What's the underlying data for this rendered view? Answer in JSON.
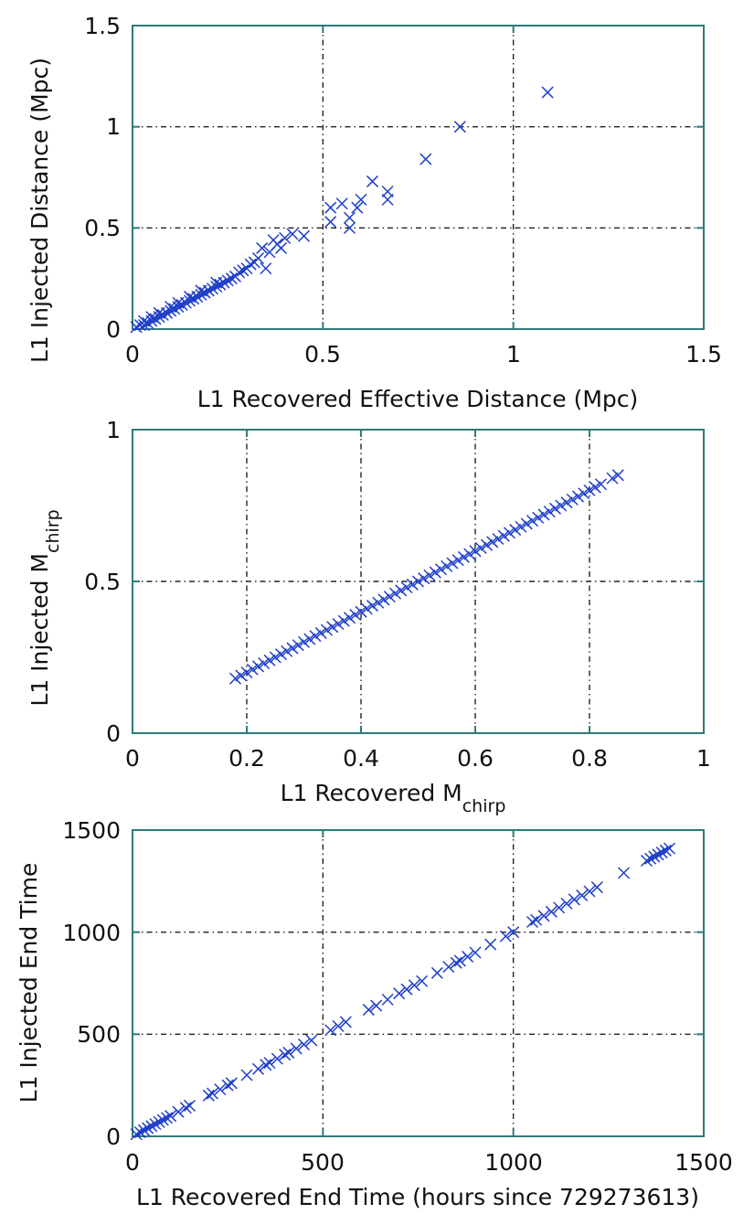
{
  "chart_data": [
    {
      "type": "scatter",
      "xlabel": "L1 Recovered Effective Distance (Mpc)",
      "ylabel": "L1 Injected Distance (Mpc)",
      "xlim": [
        0,
        1.5
      ],
      "ylim": [
        0,
        1.5
      ],
      "xticks": [
        "0",
        "0.5",
        "1",
        "1.5"
      ],
      "yticks": [
        "0",
        "0.5",
        "1",
        "1.5"
      ],
      "grid": true,
      "marker": "x",
      "color": "#1f3fc8",
      "points": [
        [
          0.01,
          0.01
        ],
        [
          0.02,
          0.02
        ],
        [
          0.03,
          0.02
        ],
        [
          0.03,
          0.04
        ],
        [
          0.04,
          0.03
        ],
        [
          0.05,
          0.04
        ],
        [
          0.05,
          0.06
        ],
        [
          0.06,
          0.05
        ],
        [
          0.07,
          0.06
        ],
        [
          0.07,
          0.08
        ],
        [
          0.08,
          0.07
        ],
        [
          0.09,
          0.08
        ],
        [
          0.1,
          0.09
        ],
        [
          0.1,
          0.11
        ],
        [
          0.11,
          0.1
        ],
        [
          0.12,
          0.11
        ],
        [
          0.12,
          0.13
        ],
        [
          0.13,
          0.12
        ],
        [
          0.14,
          0.13
        ],
        [
          0.15,
          0.14
        ],
        [
          0.15,
          0.16
        ],
        [
          0.16,
          0.15
        ],
        [
          0.17,
          0.16
        ],
        [
          0.18,
          0.17
        ],
        [
          0.18,
          0.19
        ],
        [
          0.19,
          0.18
        ],
        [
          0.2,
          0.19
        ],
        [
          0.21,
          0.2
        ],
        [
          0.22,
          0.21
        ],
        [
          0.22,
          0.23
        ],
        [
          0.23,
          0.22
        ],
        [
          0.24,
          0.23
        ],
        [
          0.25,
          0.24
        ],
        [
          0.26,
          0.25
        ],
        [
          0.27,
          0.26
        ],
        [
          0.28,
          0.28
        ],
        [
          0.29,
          0.29
        ],
        [
          0.3,
          0.3
        ],
        [
          0.31,
          0.32
        ],
        [
          0.32,
          0.33
        ],
        [
          0.33,
          0.35
        ],
        [
          0.34,
          0.4
        ],
        [
          0.35,
          0.3
        ],
        [
          0.36,
          0.38
        ],
        [
          0.37,
          0.44
        ],
        [
          0.38,
          0.42
        ],
        [
          0.39,
          0.4
        ],
        [
          0.4,
          0.45
        ],
        [
          0.42,
          0.47
        ],
        [
          0.45,
          0.46
        ],
        [
          0.52,
          0.53
        ],
        [
          0.52,
          0.6
        ],
        [
          0.55,
          0.62
        ],
        [
          0.57,
          0.5
        ],
        [
          0.57,
          0.55
        ],
        [
          0.59,
          0.6
        ],
        [
          0.6,
          0.64
        ],
        [
          0.63,
          0.73
        ],
        [
          0.67,
          0.64
        ],
        [
          0.67,
          0.68
        ],
        [
          0.77,
          0.84
        ],
        [
          0.86,
          1.0
        ],
        [
          1.09,
          1.17
        ]
      ]
    },
    {
      "type": "scatter",
      "xlabel_main": "L1 Recovered M",
      "xlabel_sub": "chirp",
      "ylabel_main": "L1 Injected M",
      "ylabel_sub": "chirp",
      "xlim": [
        0,
        1
      ],
      "ylim": [
        0,
        1
      ],
      "xticks": [
        "0",
        "0.2",
        "0.4",
        "0.6",
        "0.8",
        "1"
      ],
      "yticks": [
        "0",
        "0.5",
        "1"
      ],
      "grid": true,
      "marker": "x",
      "color": "#1f3fc8",
      "points": [
        [
          0.18,
          0.18
        ],
        [
          0.19,
          0.19
        ],
        [
          0.2,
          0.2
        ],
        [
          0.21,
          0.21
        ],
        [
          0.22,
          0.22
        ],
        [
          0.23,
          0.23
        ],
        [
          0.24,
          0.24
        ],
        [
          0.25,
          0.25
        ],
        [
          0.26,
          0.26
        ],
        [
          0.27,
          0.27
        ],
        [
          0.28,
          0.28
        ],
        [
          0.29,
          0.29
        ],
        [
          0.3,
          0.3
        ],
        [
          0.31,
          0.31
        ],
        [
          0.32,
          0.32
        ],
        [
          0.33,
          0.33
        ],
        [
          0.34,
          0.34
        ],
        [
          0.35,
          0.35
        ],
        [
          0.36,
          0.36
        ],
        [
          0.37,
          0.37
        ],
        [
          0.38,
          0.38
        ],
        [
          0.39,
          0.39
        ],
        [
          0.4,
          0.4
        ],
        [
          0.41,
          0.41
        ],
        [
          0.42,
          0.42
        ],
        [
          0.43,
          0.43
        ],
        [
          0.44,
          0.44
        ],
        [
          0.45,
          0.45
        ],
        [
          0.46,
          0.46
        ],
        [
          0.47,
          0.47
        ],
        [
          0.48,
          0.48
        ],
        [
          0.49,
          0.49
        ],
        [
          0.5,
          0.5
        ],
        [
          0.51,
          0.51
        ],
        [
          0.52,
          0.52
        ],
        [
          0.53,
          0.53
        ],
        [
          0.54,
          0.54
        ],
        [
          0.55,
          0.55
        ],
        [
          0.56,
          0.56
        ],
        [
          0.57,
          0.57
        ],
        [
          0.58,
          0.58
        ],
        [
          0.59,
          0.59
        ],
        [
          0.6,
          0.6
        ],
        [
          0.61,
          0.61
        ],
        [
          0.62,
          0.62
        ],
        [
          0.63,
          0.63
        ],
        [
          0.64,
          0.64
        ],
        [
          0.65,
          0.65
        ],
        [
          0.66,
          0.66
        ],
        [
          0.67,
          0.67
        ],
        [
          0.68,
          0.68
        ],
        [
          0.69,
          0.69
        ],
        [
          0.7,
          0.7
        ],
        [
          0.71,
          0.71
        ],
        [
          0.72,
          0.72
        ],
        [
          0.73,
          0.73
        ],
        [
          0.74,
          0.74
        ],
        [
          0.75,
          0.75
        ],
        [
          0.76,
          0.76
        ],
        [
          0.77,
          0.77
        ],
        [
          0.78,
          0.78
        ],
        [
          0.79,
          0.79
        ],
        [
          0.8,
          0.8
        ],
        [
          0.81,
          0.81
        ],
        [
          0.82,
          0.82
        ],
        [
          0.84,
          0.84
        ],
        [
          0.85,
          0.85
        ]
      ]
    },
    {
      "type": "scatter",
      "xlabel": "L1 Recovered End Time (hours since 729273613)",
      "ylabel": "L1 Injected End Time",
      "xlim": [
        0,
        1500
      ],
      "ylim": [
        0,
        1500
      ],
      "xticks": [
        "0",
        "500",
        "1000",
        "1500"
      ],
      "yticks": [
        "0",
        "500",
        "1000",
        "1500"
      ],
      "grid": true,
      "marker": "x",
      "color": "#1f3fc8",
      "points": [
        [
          10,
          10
        ],
        [
          20,
          20
        ],
        [
          30,
          30
        ],
        [
          40,
          40
        ],
        [
          50,
          50
        ],
        [
          60,
          60
        ],
        [
          70,
          70
        ],
        [
          80,
          80
        ],
        [
          90,
          90
        ],
        [
          100,
          100
        ],
        [
          120,
          120
        ],
        [
          140,
          140
        ],
        [
          150,
          150
        ],
        [
          200,
          200
        ],
        [
          210,
          210
        ],
        [
          230,
          230
        ],
        [
          250,
          250
        ],
        [
          260,
          260
        ],
        [
          300,
          300
        ],
        [
          330,
          330
        ],
        [
          350,
          350
        ],
        [
          360,
          360
        ],
        [
          380,
          380
        ],
        [
          400,
          400
        ],
        [
          410,
          410
        ],
        [
          430,
          430
        ],
        [
          450,
          450
        ],
        [
          470,
          470
        ],
        [
          520,
          520
        ],
        [
          540,
          540
        ],
        [
          560,
          560
        ],
        [
          620,
          620
        ],
        [
          640,
          640
        ],
        [
          670,
          670
        ],
        [
          700,
          700
        ],
        [
          720,
          720
        ],
        [
          740,
          740
        ],
        [
          760,
          760
        ],
        [
          800,
          800
        ],
        [
          830,
          830
        ],
        [
          850,
          850
        ],
        [
          860,
          860
        ],
        [
          880,
          880
        ],
        [
          900,
          900
        ],
        [
          940,
          940
        ],
        [
          980,
          980
        ],
        [
          1000,
          1000
        ],
        [
          1050,
          1050
        ],
        [
          1060,
          1060
        ],
        [
          1080,
          1080
        ],
        [
          1100,
          1100
        ],
        [
          1120,
          1120
        ],
        [
          1140,
          1140
        ],
        [
          1160,
          1160
        ],
        [
          1180,
          1180
        ],
        [
          1200,
          1200
        ],
        [
          1220,
          1220
        ],
        [
          1290,
          1290
        ],
        [
          1350,
          1350
        ],
        [
          1360,
          1360
        ],
        [
          1370,
          1370
        ],
        [
          1380,
          1380
        ],
        [
          1390,
          1390
        ],
        [
          1400,
          1400
        ],
        [
          1410,
          1410
        ]
      ]
    }
  ]
}
